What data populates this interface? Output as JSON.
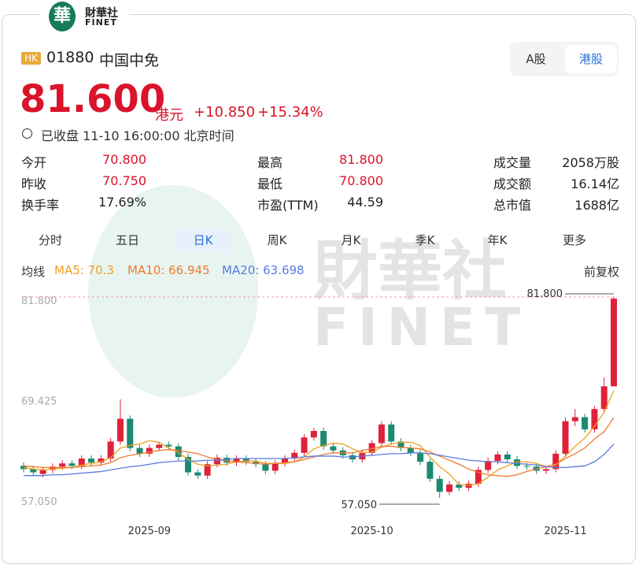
{
  "header": {
    "brand": "財華社",
    "brand_en": "FINET",
    "market_badge": "HK",
    "code": "01880",
    "name": "中国中免",
    "markets": [
      "A股",
      "港股"
    ]
  },
  "quote": {
    "price": "81.600",
    "currency": "港元",
    "change": "+10.850",
    "change_pct": "+15.34%",
    "status": "已收盘 11-10 16:00:00 北京时间"
  },
  "stats": [
    {
      "label": "今开",
      "value": "70.800"
    },
    {
      "label": "最高",
      "value": "81.800"
    },
    {
      "label": "成交量",
      "value": "2058万股"
    },
    {
      "label": "昨收",
      "value": "70.750"
    },
    {
      "label": "最低",
      "value": "70.800"
    },
    {
      "label": "成交额",
      "value": "16.14亿"
    },
    {
      "label": "换手率",
      "value": "17.69%"
    },
    {
      "label": "市盈(TTM)",
      "value": "44.59"
    },
    {
      "label": "总市值",
      "value": "1688亿"
    }
  ],
  "tabs": [
    "分时",
    "五日",
    "日K",
    "周K",
    "月K",
    "季K",
    "年K",
    "更多"
  ],
  "indicator": {
    "label": "均线",
    "adjust": "前复权"
  },
  "chart_data": {
    "type": "candlestick",
    "categories": [
      null,
      null,
      null,
      null,
      null,
      null,
      null,
      null,
      null,
      null,
      null,
      null,
      null,
      "2025-09",
      null,
      null,
      null,
      null,
      null,
      null,
      null,
      null,
      null,
      null,
      null,
      null,
      null,
      null,
      null,
      null,
      null,
      null,
      null,
      null,
      null,
      null,
      "2025-10",
      null,
      null,
      null,
      null,
      null,
      null,
      null,
      null,
      null,
      null,
      null,
      null,
      null,
      null,
      null,
      null,
      null,
      null,
      null,
      "2025-11",
      null,
      null,
      null,
      null,
      null
    ],
    "open": [
      61.0,
      60.6,
      60.0,
      60.5,
      60.9,
      61.3,
      61.0,
      61.9,
      61.4,
      61.9,
      64.0,
      66.8,
      63.2,
      62.5,
      63.2,
      63.6,
      63.4,
      62.1,
      60.2,
      59.8,
      61.2,
      62.0,
      61.4,
      61.9,
      61.5,
      61.2,
      60.4,
      61.3,
      61.9,
      62.6,
      64.5,
      65.3,
      63.4,
      62.9,
      62.3,
      61.8,
      62.6,
      63.8,
      66.1,
      64.0,
      63.2,
      62.6,
      61.5,
      59.4,
      57.8,
      58.7,
      58.3,
      58.8,
      60.5,
      61.6,
      62.4,
      61.8,
      61.0,
      60.9,
      60.4,
      60.6,
      62.5,
      66.5,
      67.0,
      65.5,
      68.0,
      70.8
    ],
    "high": [
      61.4,
      61.0,
      60.9,
      61.3,
      61.7,
      61.7,
      62.3,
      62.3,
      62.3,
      64.4,
      69.2,
      67.2,
      63.6,
      63.6,
      64.0,
      64.0,
      63.8,
      62.5,
      60.6,
      61.6,
      62.4,
      62.4,
      62.3,
      62.3,
      61.9,
      61.6,
      61.7,
      62.3,
      63.0,
      64.9,
      65.7,
      65.7,
      63.8,
      63.3,
      62.7,
      63.0,
      64.2,
      66.5,
      66.5,
      64.4,
      63.6,
      63.0,
      61.9,
      59.8,
      59.1,
      59.1,
      59.2,
      60.9,
      62.0,
      62.8,
      62.8,
      62.2,
      61.4,
      61.3,
      61.0,
      62.9,
      67.0,
      68.0,
      67.4,
      68.4,
      71.9,
      81.8
    ],
    "low": [
      60.2,
      59.8,
      59.6,
      60.1,
      60.5,
      60.6,
      60.6,
      61.0,
      61.0,
      61.5,
      63.6,
      62.8,
      62.1,
      62.1,
      62.8,
      63.0,
      61.7,
      59.8,
      59.4,
      59.4,
      60.8,
      61.0,
      61.0,
      61.1,
      60.8,
      60.0,
      60.0,
      60.9,
      61.5,
      62.2,
      64.1,
      63.0,
      62.5,
      61.9,
      61.4,
      61.4,
      62.2,
      63.4,
      63.6,
      62.8,
      62.2,
      61.1,
      59.0,
      57.05,
      57.4,
      57.9,
      57.9,
      58.4,
      60.1,
      61.2,
      61.4,
      60.6,
      60.5,
      60.0,
      60.0,
      60.2,
      62.1,
      65.9,
      65.1,
      65.1,
      67.6,
      70.8
    ],
    "close": [
      60.6,
      60.2,
      60.5,
      60.9,
      61.3,
      61.0,
      61.9,
      61.4,
      61.9,
      64.0,
      66.8,
      63.2,
      62.5,
      63.2,
      63.6,
      63.4,
      62.1,
      60.2,
      59.8,
      61.2,
      62.0,
      61.4,
      61.9,
      61.5,
      61.2,
      60.4,
      61.3,
      61.9,
      62.6,
      64.5,
      65.3,
      63.4,
      62.9,
      62.3,
      61.8,
      62.6,
      63.8,
      66.1,
      64.0,
      63.2,
      62.6,
      61.5,
      59.4,
      57.8,
      58.7,
      58.3,
      58.8,
      60.5,
      61.6,
      62.4,
      61.8,
      61.0,
      60.9,
      60.4,
      60.6,
      62.5,
      66.5,
      67.0,
      65.5,
      68.0,
      70.8,
      81.6
    ],
    "up_color": "#e0213a",
    "down_color": "#1b8a6e",
    "series": [
      {
        "name": "MA5: 70.3",
        "color": "#f0a020",
        "values": [
          60.8,
          60.6,
          60.5,
          60.6,
          60.7,
          60.8,
          61.1,
          61.3,
          61.5,
          62.0,
          63.2,
          63.5,
          63.7,
          64.1,
          63.9,
          63.2,
          62.6,
          61.8,
          61.2,
          61.0,
          61.1,
          61.2,
          61.5,
          61.6,
          61.6,
          61.3,
          61.3,
          61.3,
          61.5,
          62.1,
          63.1,
          63.5,
          63.8,
          63.7,
          63.1,
          62.6,
          62.7,
          63.3,
          63.7,
          63.9,
          63.9,
          63.5,
          62.1,
          60.9,
          60.0,
          58.7,
          58.6,
          58.8,
          59.6,
          60.5,
          61.0,
          61.5,
          61.5,
          61.3,
          60.9,
          61.1,
          62.2,
          63.4,
          64.4,
          65.9,
          67.6,
          70.3
        ]
      },
      {
        "name": "MA10: 66.945",
        "color": "#ef7a2e",
        "values": [
          61.0,
          60.9,
          60.8,
          60.8,
          60.8,
          60.8,
          60.9,
          61.0,
          61.1,
          61.4,
          62.0,
          62.3,
          62.5,
          62.7,
          62.9,
          63.0,
          62.9,
          62.7,
          62.5,
          62.1,
          61.8,
          61.6,
          61.5,
          61.4,
          61.3,
          61.2,
          61.3,
          61.4,
          61.5,
          61.8,
          62.1,
          62.4,
          62.6,
          62.6,
          62.6,
          62.9,
          63.1,
          63.4,
          63.4,
          63.3,
          63.2,
          63.1,
          62.7,
          62.2,
          61.7,
          61.2,
          60.6,
          60.2,
          59.9,
          59.8,
          59.7,
          59.9,
          60.3,
          60.6,
          60.9,
          61.2,
          61.9,
          62.5,
          63.2,
          64.3,
          65.2,
          66.945
        ]
      },
      {
        "name": "MA20: 63.698",
        "color": "#5a7be0",
        "values": [
          59.8,
          59.8,
          59.8,
          59.9,
          59.9,
          60.0,
          60.1,
          60.2,
          60.3,
          60.5,
          60.7,
          60.9,
          61.0,
          61.2,
          61.4,
          61.5,
          61.6,
          61.6,
          61.6,
          61.7,
          61.7,
          61.8,
          61.9,
          61.9,
          61.9,
          61.9,
          61.9,
          61.9,
          62.0,
          62.1,
          62.2,
          62.2,
          62.2,
          62.1,
          62.1,
          62.2,
          62.3,
          62.4,
          62.5,
          62.5,
          62.6,
          62.6,
          62.5,
          62.3,
          62.1,
          61.9,
          61.7,
          61.6,
          61.5,
          61.5,
          61.4,
          61.3,
          61.2,
          61.1,
          60.9,
          60.8,
          60.8,
          60.9,
          61.0,
          61.5,
          62.4,
          63.698
        ]
      }
    ],
    "ylim": [
      57.05,
      81.8
    ],
    "yticks": [
      {
        "value": 81.8,
        "label": "81.800"
      },
      {
        "value": 69.425,
        "label": "69.425"
      },
      {
        "value": 57.05,
        "label": "57.050"
      }
    ],
    "max_label": "81.800",
    "min_label": "57.050"
  }
}
